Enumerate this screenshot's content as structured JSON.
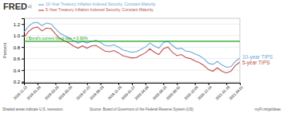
{
  "chart_data": {
    "type": "line",
    "title": "FRED",
    "y_label": "Percent",
    "annotations": [
      {
        "text": "d|"
      },
      {
        "text": "Shaded areas indicate U.S. recession."
      },
      {
        "text": "Source: Board of Governors of the Federal Reserve System (US)"
      },
      {
        "text": "myFi.ninja/ideas"
      }
    ],
    "categories": [
      "2018.11.12",
      null,
      null,
      "2019.01.09",
      null,
      null,
      null,
      "2019.03.20",
      null,
      null,
      "2019.05.20",
      null,
      null,
      null,
      "2019.07.22",
      null,
      null,
      "2019.09.23",
      null,
      null,
      null,
      "2019.11.25",
      null,
      null,
      "2020.01.27",
      null,
      null,
      "2020.04.06",
      null,
      null,
      null,
      "2020.06.22",
      null,
      null,
      "2020.08.31",
      null,
      null,
      null,
      "2020.10.05",
      null,
      null,
      "2020.12.14",
      null,
      null,
      null,
      "2021.01.19",
      null,
      null,
      "2021.04.01"
    ],
    "series": [
      {
        "name": "10-Year Treasury Inflation-Indexed Security, Constant Maturity",
        "end_label": "10-year TIPS",
        "color": "#6aaad4",
        "values": [
          1.06,
          1.16,
          1.22,
          1.23,
          1.17,
          1.22,
          1.2,
          1.12,
          1.04,
          1.0,
          0.96,
          0.91,
          0.87,
          0.9,
          0.87,
          0.9,
          0.92,
          0.88,
          0.83,
          0.82,
          0.84,
          0.8,
          0.75,
          0.73,
          0.71,
          0.72,
          0.76,
          0.8,
          0.87,
          0.82,
          0.78,
          0.88,
          0.9,
          0.83,
          0.77,
          0.78,
          0.73,
          0.72,
          0.68,
          0.65,
          0.6,
          0.52,
          0.5,
          0.55,
          0.49,
          0.45,
          0.46,
          0.55,
          0.61
        ]
      },
      {
        "name": "5-Year Treasury Inflation-Indexed Security, Constant Maturity",
        "end_label": "5-year TIPS",
        "color": "#c0504d",
        "values": [
          0.97,
          1.07,
          1.13,
          1.15,
          1.08,
          1.13,
          1.12,
          1.03,
          0.95,
          0.91,
          0.87,
          0.82,
          0.78,
          0.82,
          0.78,
          0.82,
          0.83,
          0.78,
          0.73,
          0.72,
          0.74,
          0.7,
          0.65,
          0.63,
          0.61,
          0.62,
          0.66,
          0.7,
          0.77,
          0.71,
          0.67,
          0.77,
          0.8,
          0.71,
          0.65,
          0.67,
          0.62,
          0.6,
          0.56,
          0.53,
          0.48,
          0.41,
          0.38,
          0.44,
          0.38,
          0.35,
          0.38,
          0.48,
          0.54
        ]
      }
    ],
    "hlines": [
      {
        "value": 0.9,
        "label": "I Bond's current fixed rate = 0.90%",
        "color": "#1a9e1a"
      }
    ],
    "ylim": [
      0.18,
      1.3
    ],
    "yticks": [
      0.2,
      0.4,
      0.6,
      0.8,
      {
        "value": 1.0,
        "label": "1.0"
      },
      1.2
    ],
    "grid": true
  }
}
